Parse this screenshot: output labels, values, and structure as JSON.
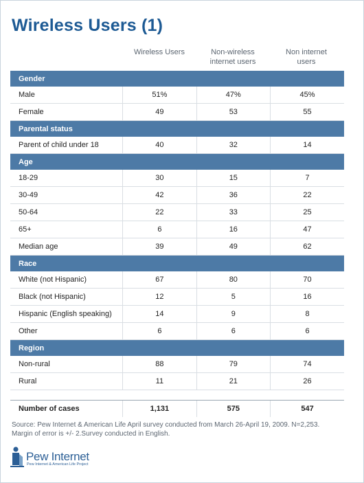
{
  "title": "Wireless Users (1)",
  "colors": {
    "title": "#1d5a94",
    "section_bar": "#4d7aa6",
    "logo": "#2c5f96"
  },
  "columns": [
    [
      "Wireless Users"
    ],
    [
      "Non-wireless",
      "internet users"
    ],
    [
      "Non internet",
      "users"
    ]
  ],
  "chart_data": {
    "type": "table",
    "title": "Wireless Users (1)",
    "columns": [
      "Wireless Users",
      "Non-wireless internet users",
      "Non internet users"
    ],
    "sections": [
      {
        "name": "Gender",
        "rows": [
          {
            "label": "Male",
            "values": [
              "51%",
              "47%",
              "45%"
            ]
          },
          {
            "label": "Female",
            "values": [
              "49",
              "53",
              "55"
            ]
          }
        ]
      },
      {
        "name": "Parental status",
        "rows": [
          {
            "label": "Parent of child under 18",
            "values": [
              "40",
              "32",
              "14"
            ]
          }
        ]
      },
      {
        "name": "Age",
        "rows": [
          {
            "label": "18-29",
            "values": [
              "30",
              "15",
              "7"
            ]
          },
          {
            "label": "30-49",
            "values": [
              "42",
              "36",
              "22"
            ]
          },
          {
            "label": "50-64",
            "values": [
              "22",
              "33",
              "25"
            ]
          },
          {
            "label": "65+",
            "values": [
              "6",
              "16",
              "47"
            ]
          },
          {
            "label": "Median age",
            "values": [
              "39",
              "49",
              "62"
            ]
          }
        ]
      },
      {
        "name": "Race",
        "rows": [
          {
            "label": "White (not Hispanic)",
            "values": [
              "67",
              "80",
              "70"
            ]
          },
          {
            "label": "Black (not Hispanic)",
            "values": [
              "12",
              "5",
              "16"
            ]
          },
          {
            "label": "Hispanic (English speaking)",
            "values": [
              "14",
              "9",
              "8"
            ]
          },
          {
            "label": "Other",
            "values": [
              "6",
              "6",
              "6"
            ]
          }
        ]
      },
      {
        "name": "Region",
        "rows": [
          {
            "label": "Non-rural",
            "values": [
              "88",
              "79",
              "74"
            ]
          },
          {
            "label": "Rural",
            "values": [
              "11",
              "21",
              "26"
            ]
          }
        ]
      }
    ],
    "total": {
      "label": "Number of cases",
      "values": [
        "1,131",
        "575",
        "547"
      ]
    }
  },
  "source": [
    "Source: Pew Internet & American Life April survey conducted from March 26-April 19, 2009. N=2,253.",
    "Margin of error is +/- 2.Survey conducted in English."
  ],
  "logo": {
    "name": "Pew Internet",
    "tagline": "Pew Internet & American Life Project",
    "icon": "person-logo-icon"
  }
}
